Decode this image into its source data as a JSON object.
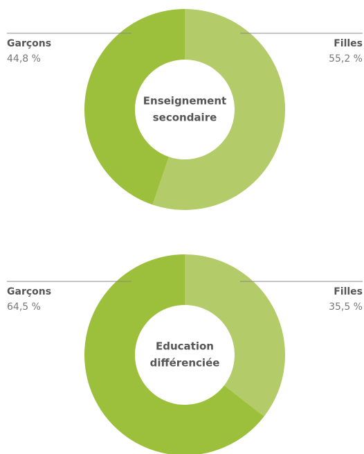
{
  "chart_data": [
    {
      "type": "pie",
      "donut": true,
      "center_label": [
        "Enseignement",
        "secondaire"
      ],
      "categories": [
        "Filles",
        "Garçons"
      ],
      "values": [
        55.2,
        44.8
      ],
      "value_labels": [
        "55,2 %",
        "44,8 %"
      ],
      "colors": [
        "#b3cb69",
        "#9cc03b"
      ]
    },
    {
      "type": "pie",
      "donut": true,
      "center_label": [
        "Education",
        "différenciée"
      ],
      "categories": [
        "Filles",
        "Garçons"
      ],
      "values": [
        35.5,
        64.5
      ],
      "value_labels": [
        "35,5 %",
        "64,5 %"
      ],
      "colors": [
        "#b3cb69",
        "#9cc03b"
      ]
    }
  ]
}
